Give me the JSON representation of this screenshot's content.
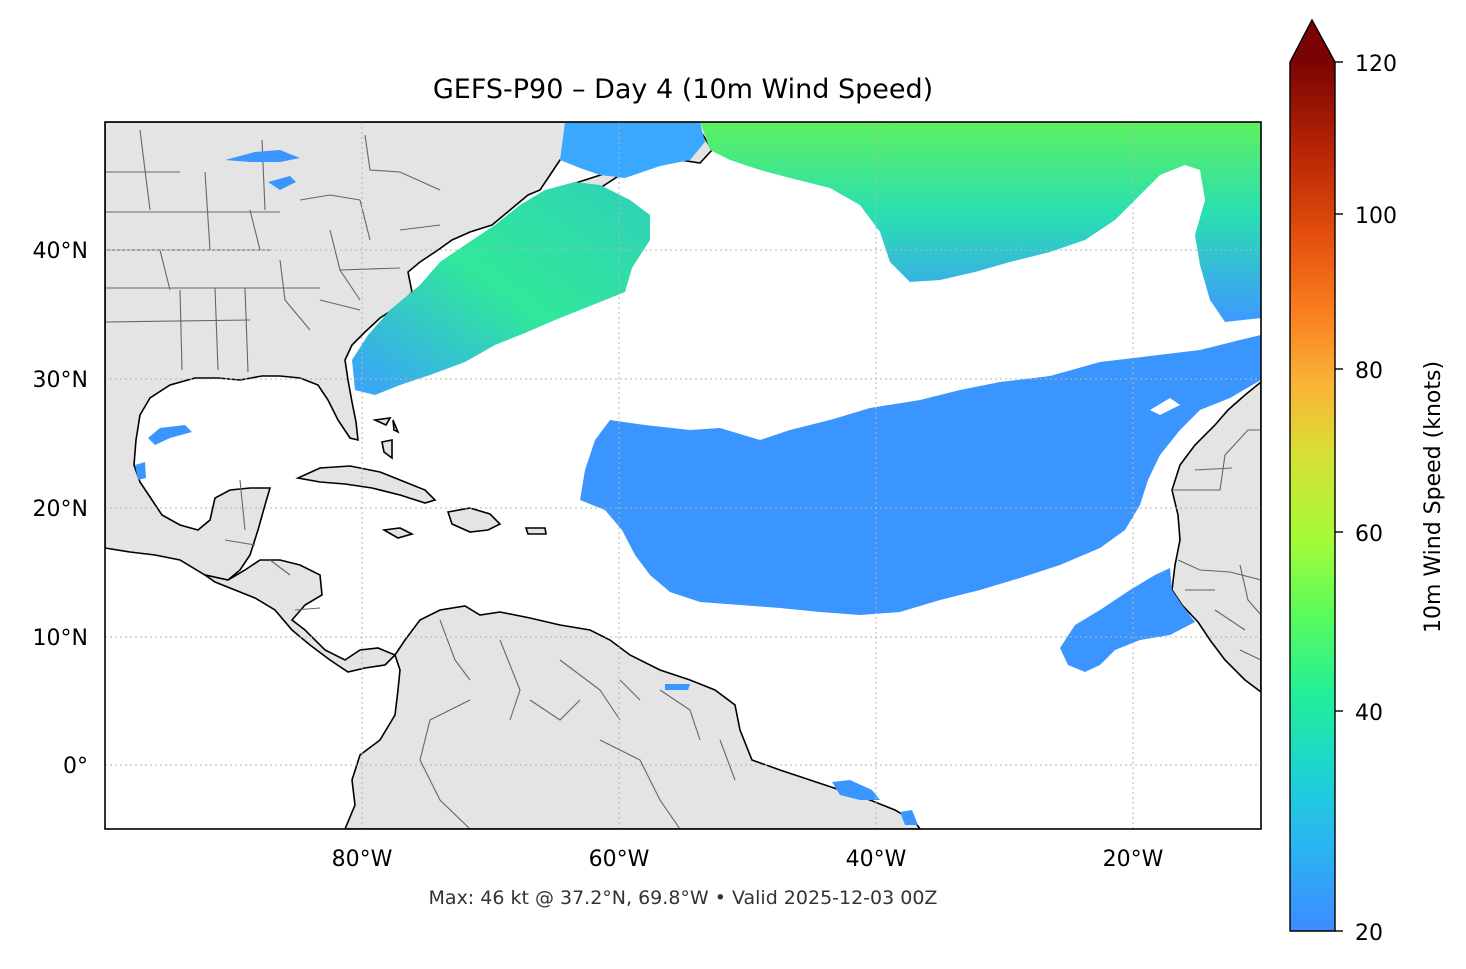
{
  "map": {
    "title": "GEFS-P90 – Day 4 (10m Wind Speed)",
    "footer": "Max: 46 kt @ 37.2°N, 69.8°W • Valid 2025-12-03 00Z",
    "lat_ticks": [
      "40°N",
      "30°N",
      "20°N",
      "10°N",
      "0°"
    ],
    "lon_ticks": [
      "80°W",
      "60°W",
      "40°W",
      "20°W"
    ],
    "extent": {
      "lon_min": -100,
      "lon_max": -10,
      "lat_min": -5,
      "lat_max": 50
    },
    "land_color": "#e4e4e4",
    "ocean_color": "#ffffff",
    "gridlines": true
  },
  "colorbar": {
    "label": "10m Wind Speed (knots)",
    "ticks": [
      "120",
      "100",
      "80",
      "60",
      "40",
      "20"
    ],
    "min": 20,
    "max": 120,
    "extend": "max",
    "colormap": "turbo"
  }
}
